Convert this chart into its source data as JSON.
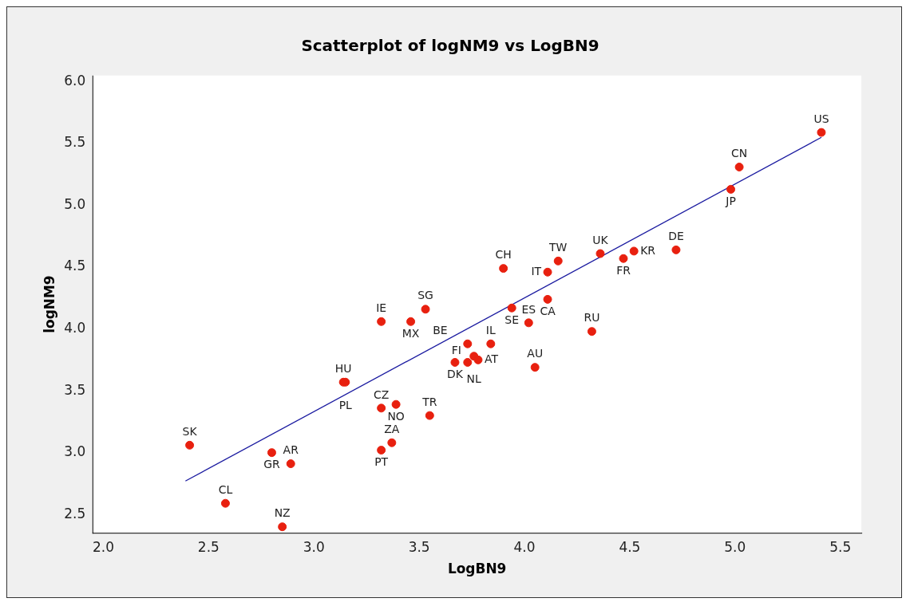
{
  "chart_data": {
    "type": "scatter",
    "title": "Scatterplot of logNM9 vs LogBN9",
    "xlabel": "LogBN9",
    "ylabel": "logNM9",
    "xlim": [
      1.95,
      5.6
    ],
    "xticks": [
      {
        "value": 2,
        "label": "2.0"
      },
      2.5,
      {
        "value": 3,
        "label": "3.0"
      },
      3.5,
      {
        "value": 4,
        "label": "4.0"
      },
      4.5,
      {
        "value": 5,
        "label": "5.0"
      },
      5.5
    ],
    "ylim": [
      2.35,
      6.05
    ],
    "yticks": [
      2.5,
      {
        "value": 3,
        "label": "3.0"
      },
      3.5,
      {
        "value": 4,
        "label": "4.0"
      },
      4.5,
      {
        "value": 5,
        "label": "5.0"
      },
      5.5,
      {
        "value": 6,
        "label": "6.0"
      }
    ],
    "grid": false,
    "legend": false,
    "marker": "circle",
    "series": [
      {
        "color": "#e8200f",
        "x": [
          5.41,
          5.02,
          4.98,
          4.72,
          4.52,
          4.47,
          4.36,
          4.16,
          4.11,
          4.11,
          3.9,
          3.94,
          4.02,
          4.32,
          4.05,
          3.84,
          3.53,
          3.46,
          3.32,
          3.14,
          3.15,
          3.32,
          3.39,
          3.55,
          3.37,
          3.32,
          2.41,
          2.8,
          2.89,
          2.58,
          2.85,
          3.73,
          3.76,
          3.78,
          3.67,
          3.73
        ],
        "values": [
          5.59,
          5.31,
          5.13,
          4.64,
          4.63,
          4.57,
          4.61,
          4.55,
          4.46,
          4.24,
          4.49,
          4.17,
          4.05,
          3.98,
          3.69,
          3.88,
          4.16,
          4.06,
          4.06,
          3.57,
          3.57,
          3.36,
          3.39,
          3.3,
          3.08,
          3.02,
          3.06,
          3.0,
          2.91,
          2.59,
          2.4,
          3.88,
          3.78,
          3.75,
          3.73,
          3.73
        ],
        "value_labels": [
          "US",
          "CN",
          "JP",
          "DE",
          "KR",
          "FR",
          "UK",
          "TW",
          "IT",
          "CA",
          "CH",
          "SE",
          "ES",
          "RU",
          "AU",
          "IL",
          "SG",
          "MX",
          "IE",
          "HU",
          "PL",
          "CZ",
          "NO",
          "TR",
          "ZA",
          "PT",
          "SK",
          "GR",
          "AR",
          "CL",
          "NZ",
          "BE",
          "NL",
          "AT",
          "DK",
          "FI"
        ]
      },
      {
        "type": "line",
        "color": "#1a1aa0",
        "x": [
          2.39,
          5.41
        ],
        "values": [
          2.77,
          5.55
        ],
        "line_style": "solid",
        "marker": "none"
      }
    ]
  }
}
